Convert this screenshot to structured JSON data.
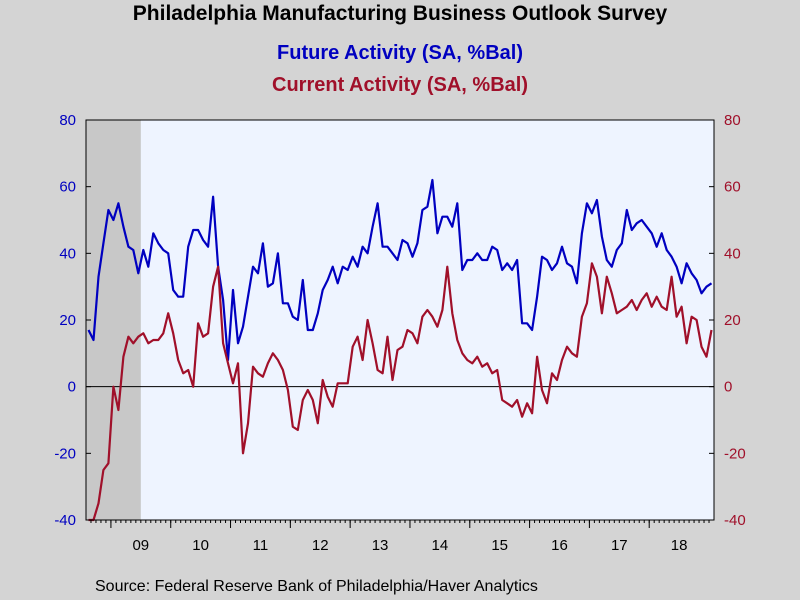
{
  "chart_data": {
    "type": "line",
    "title": "Philadelphia Manufacturing Business Outlook Survey",
    "source": "Source:  Federal Reserve Bank of Philadelphia/Haver Analytics",
    "x_start": "2008-08",
    "x_tick_labels": [
      "09",
      "10",
      "11",
      "12",
      "13",
      "14",
      "15",
      "16",
      "17",
      "18"
    ],
    "ylim": [
      -40,
      80
    ],
    "y_ticks": [
      -40,
      -20,
      0,
      20,
      40,
      60,
      80
    ],
    "y_tick_labels": [
      "-40",
      "-20",
      "0",
      "20",
      "40",
      "60",
      "80"
    ],
    "recession_shading": {
      "start": "2008-08",
      "end": "2009-06",
      "color": "#c8c8c8"
    },
    "plot_background": "#eef4ff",
    "zero_line": true,
    "colors": {
      "future": "#0000c0",
      "current": "#a0102a",
      "axis_left": "#0000c0",
      "axis_right": "#a0102a"
    },
    "series": [
      {
        "name": "Future Activity (SA, %Bal)",
        "axis": "left",
        "values": [
          17,
          14,
          33,
          43,
          53,
          50,
          55,
          48,
          42,
          41,
          34,
          41,
          36,
          46,
          43,
          41,
          40,
          29,
          27,
          27,
          42,
          47,
          47,
          44,
          42,
          57,
          36,
          26,
          8,
          29,
          13,
          18,
          27,
          36,
          34,
          43,
          30,
          31,
          40,
          25,
          25,
          21,
          20,
          32,
          17,
          17,
          22,
          29,
          32,
          36,
          31,
          36,
          35,
          39,
          36,
          42,
          40,
          48,
          55,
          42,
          42,
          40,
          38,
          44,
          43,
          39,
          43,
          53,
          54,
          62,
          46,
          51,
          51,
          48,
          55,
          35,
          38,
          38,
          40,
          38,
          38,
          42,
          41,
          35,
          37,
          35,
          38,
          19,
          19,
          17,
          27,
          39,
          38,
          35,
          37,
          42,
          37,
          36,
          31,
          46,
          55,
          52,
          56,
          45,
          38,
          36,
          41,
          43,
          53,
          47,
          49,
          50,
          48,
          46,
          42,
          46,
          41,
          39,
          36,
          31,
          37,
          34,
          32,
          28,
          30,
          31
        ]
      },
      {
        "name": "Current Activity (SA, %Bal)",
        "axis": "right",
        "values": [
          -40,
          -40,
          -35,
          -25,
          -23,
          0,
          -7,
          9,
          15,
          13,
          15,
          16,
          13,
          14,
          14,
          16,
          22,
          16,
          8,
          4,
          5,
          0,
          19,
          15,
          16,
          30,
          36,
          13,
          7,
          1,
          7,
          -20,
          -11,
          6,
          4,
          3,
          7,
          10,
          8,
          5,
          -1,
          -12,
          -13,
          -4,
          -1,
          -4,
          -11,
          2,
          -3,
          -6,
          1,
          1,
          1,
          12,
          15,
          8,
          20,
          13,
          5,
          4,
          15,
          2,
          11,
          12,
          17,
          16,
          13,
          21,
          23,
          21,
          18,
          23,
          36,
          22,
          14,
          10,
          8,
          7,
          9,
          6,
          7,
          4,
          5,
          -4,
          -5,
          -6,
          -4,
          -9,
          -5,
          -8,
          9,
          -1,
          -5,
          4,
          2,
          8,
          12,
          10,
          9,
          21,
          25,
          37,
          33,
          22,
          33,
          28,
          22,
          23,
          24,
          26,
          23,
          26,
          28,
          24,
          27,
          24,
          23,
          33,
          21,
          24,
          13,
          21,
          20,
          12,
          9,
          17
        ]
      }
    ]
  }
}
